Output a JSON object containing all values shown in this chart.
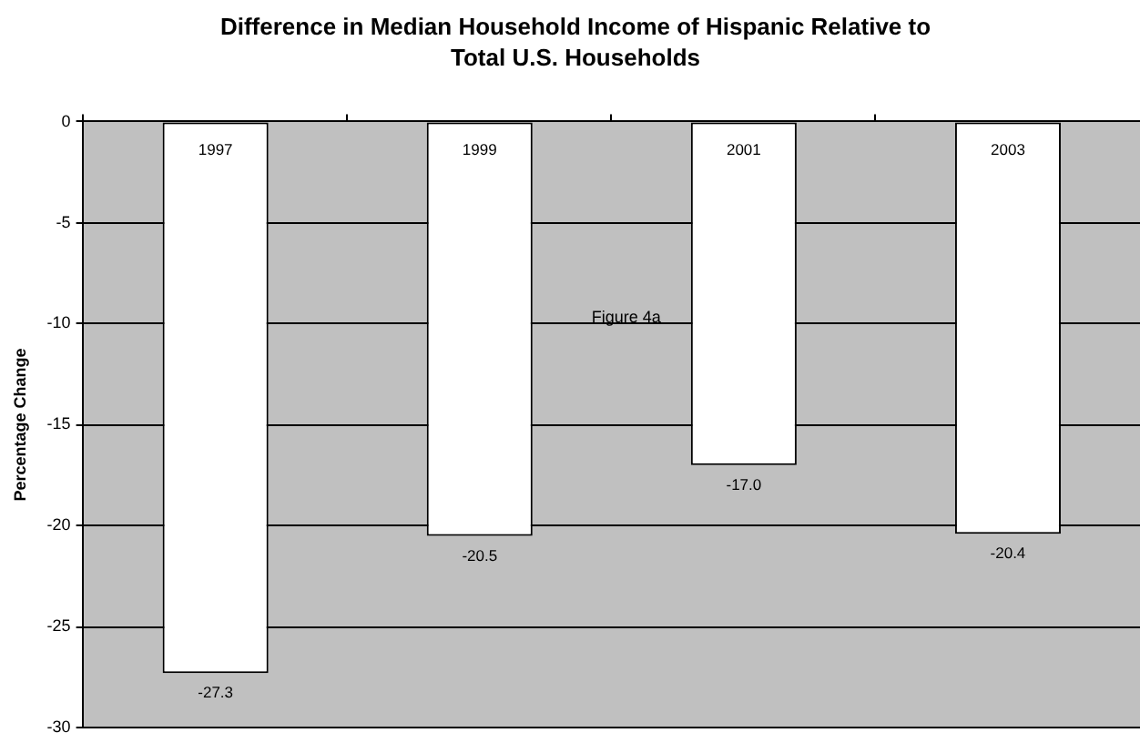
{
  "chart_data": {
    "type": "bar",
    "title": "Difference in Median Household Income of Hispanic Relative to Total U.S. Households",
    "ylabel": "Percentage Change",
    "categories": [
      "1997",
      "1999",
      "2001",
      "2003"
    ],
    "values": [
      -27.3,
      -20.5,
      -17.0,
      -20.4
    ],
    "color": "#ffffff",
    "value_labels": [
      "-27.3",
      "-20.5",
      "-17.0",
      "-20.4"
    ],
    "ylim": [
      -30,
      0
    ],
    "yticks": [
      -30,
      -25,
      -20,
      -15,
      -10,
      -5,
      0
    ],
    "grid": "y",
    "annotations": [
      "Figure 4a"
    ]
  }
}
